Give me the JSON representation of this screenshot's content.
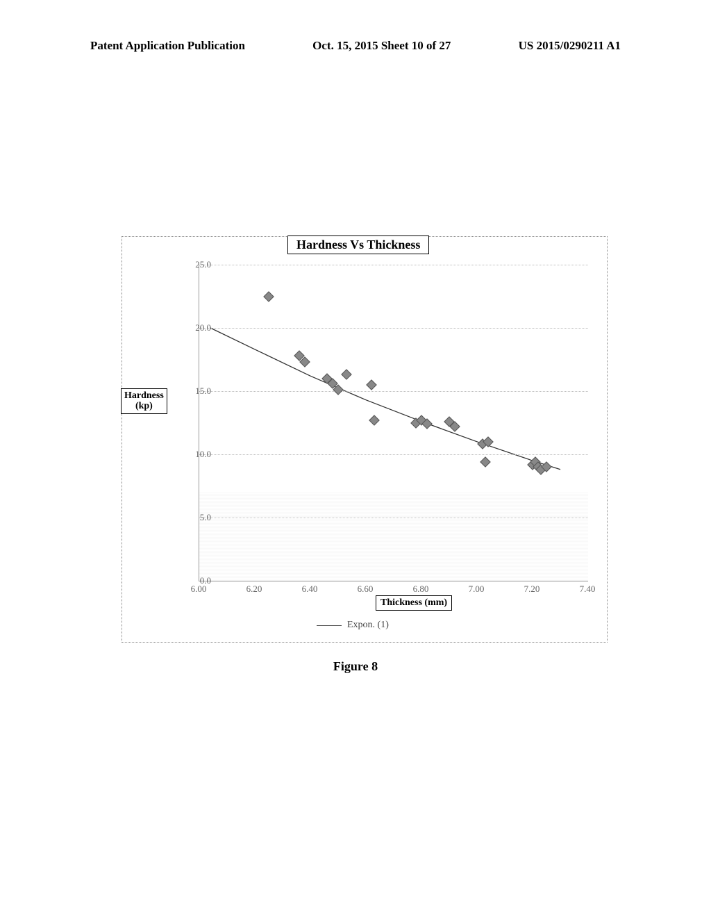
{
  "header": {
    "left": "Patent Application Publication",
    "center": "Oct. 15, 2015  Sheet 10 of 27",
    "right": "US 2015/0290211 A1"
  },
  "figure_caption": "Figure 8",
  "chart": {
    "type": "scatter",
    "title": "Hardness Vs Thickness",
    "ylabel_line1": "Hardness",
    "ylabel_line2": "(kp)",
    "xlabel": "Thickness (mm)",
    "legend_label": "Expon. (1)",
    "xlim": [
      6.0,
      7.4
    ],
    "ylim": [
      0.0,
      25.0
    ],
    "ytick_step": 5.0,
    "xtick_step": 0.2,
    "ytick_labels": [
      "0.0",
      "5.0",
      "10.0",
      "15.0",
      "20.0",
      "25.0"
    ],
    "xtick_labels": [
      "6.00",
      "6.20",
      "6.40",
      "6.60",
      "6.80",
      "7.00",
      "7.20",
      "7.40"
    ],
    "background_color": "#ffffff",
    "grid_color": "#bbbbbb",
    "marker_color": "#888888",
    "curve_color": "#333333",
    "shade_ymax": 7.0,
    "points": [
      [
        6.25,
        22.5
      ],
      [
        6.36,
        17.8
      ],
      [
        6.38,
        17.3
      ],
      [
        6.46,
        16.0
      ],
      [
        6.48,
        15.6
      ],
      [
        6.5,
        15.1
      ],
      [
        6.53,
        16.3
      ],
      [
        6.62,
        15.5
      ],
      [
        6.63,
        12.7
      ],
      [
        6.78,
        12.5
      ],
      [
        6.8,
        12.7
      ],
      [
        6.82,
        12.4
      ],
      [
        6.9,
        12.6
      ],
      [
        6.92,
        12.2
      ],
      [
        7.02,
        10.8
      ],
      [
        7.04,
        11.0
      ],
      [
        7.03,
        9.4
      ],
      [
        7.2,
        9.2
      ],
      [
        7.21,
        9.4
      ],
      [
        7.22,
        9.0
      ],
      [
        7.23,
        8.8
      ],
      [
        7.25,
        9.0
      ]
    ],
    "curve": [
      [
        6.04,
        20.0
      ],
      [
        6.2,
        18.3
      ],
      [
        6.4,
        16.2
      ],
      [
        6.6,
        14.3
      ],
      [
        6.8,
        12.6
      ],
      [
        7.0,
        11.0
      ],
      [
        7.2,
        9.5
      ],
      [
        7.3,
        8.8
      ]
    ]
  }
}
